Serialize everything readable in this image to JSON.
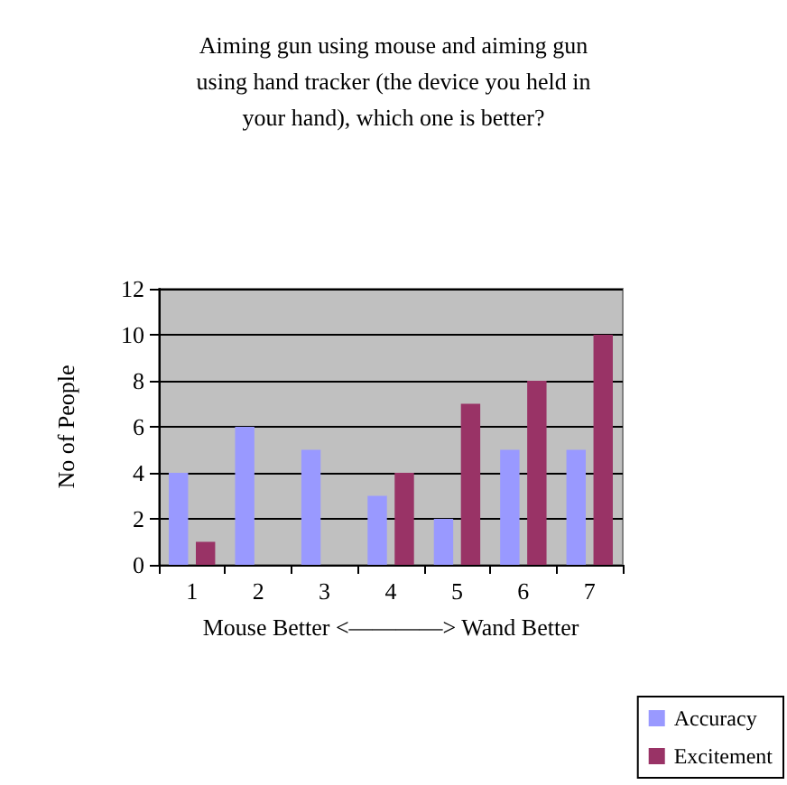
{
  "chart_data": {
    "type": "bar",
    "title": "Aiming gun using mouse and aiming gun\nusing hand tracker (the device you held in\nyour hand), which one is better?",
    "xlabel": "Mouse Better <————> Wand Better",
    "ylabel": "No of People",
    "categories": [
      "1",
      "2",
      "3",
      "4",
      "5",
      "6",
      "7"
    ],
    "series": [
      {
        "name": "Accuracy",
        "color": "#9999ff",
        "values": [
          4,
          6,
          5,
          3,
          2,
          5,
          5
        ]
      },
      {
        "name": "Excitement",
        "color": "#993366",
        "values": [
          1,
          0,
          0,
          4,
          7,
          8,
          10
        ]
      }
    ],
    "ylim": [
      0,
      12
    ],
    "yticks": [
      0,
      2,
      4,
      6,
      8,
      10,
      12
    ],
    "grid": "y",
    "legend": "bottom right"
  }
}
